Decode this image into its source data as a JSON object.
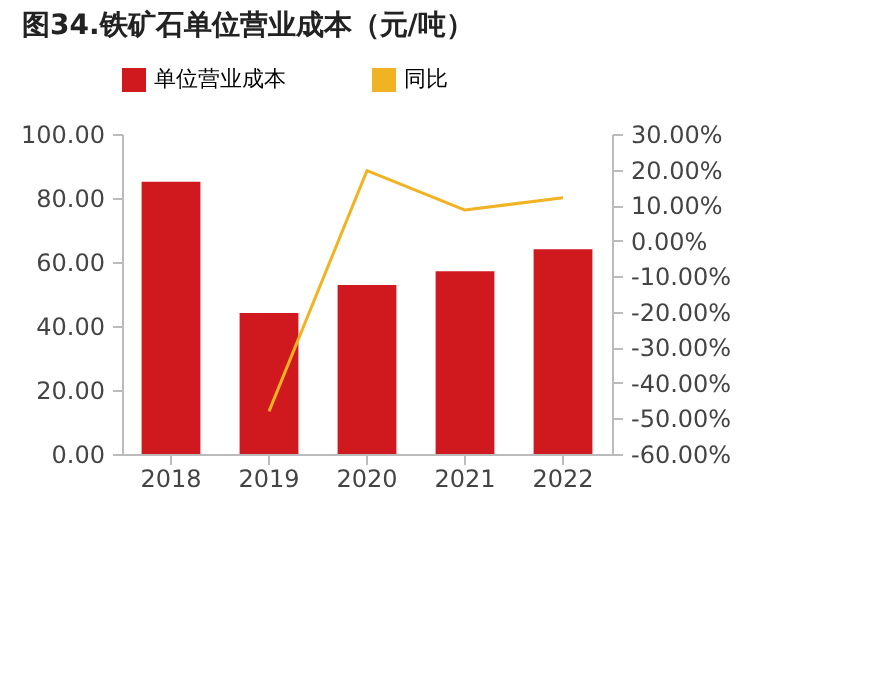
{
  "chart_data": {
    "type": "bar",
    "title": "图34.铁矿石单位营业成本（元/吨）",
    "categories": [
      "2018",
      "2019",
      "2020",
      "2021",
      "2022"
    ],
    "series": [
      {
        "name": "单位营业成本",
        "color": "#d0191f",
        "values": [
          85.1,
          44.1,
          52.8,
          57.1,
          64.0
        ]
      },
      {
        "name": "同比",
        "type": "line",
        "axis": "y2",
        "color": "#f0b323",
        "values": [
          null,
          -48.0,
          19.7,
          8.6,
          12.1
        ]
      }
    ],
    "ylim": [
      0,
      100
    ],
    "yticks": [
      {
        "value": 0,
        "label": "0.00"
      },
      {
        "value": 20,
        "label": "20.00"
      },
      {
        "value": 40,
        "label": "40.00"
      },
      {
        "value": 60,
        "label": "60.00"
      },
      {
        "value": 80,
        "label": "80.00"
      },
      {
        "value": 100,
        "label": "100.00"
      }
    ],
    "y2lim": [
      -60,
      30
    ],
    "y2ticks": [
      {
        "value": -60,
        "label": "-60.00%"
      },
      {
        "value": -50,
        "label": "-50.00%"
      },
      {
        "value": -40,
        "label": "-40.00%"
      },
      {
        "value": -30,
        "label": "-30.00%"
      },
      {
        "value": -20,
        "label": "-20.00%"
      },
      {
        "value": -10,
        "label": "-10.00%"
      },
      {
        "value": 0,
        "label": "0.00%"
      },
      {
        "value": 10,
        "label": "10.00%"
      },
      {
        "value": 20,
        "label": "20.00%"
      },
      {
        "value": 30,
        "label": "30.00%"
      }
    ],
    "grid": false,
    "legend": "top"
  }
}
